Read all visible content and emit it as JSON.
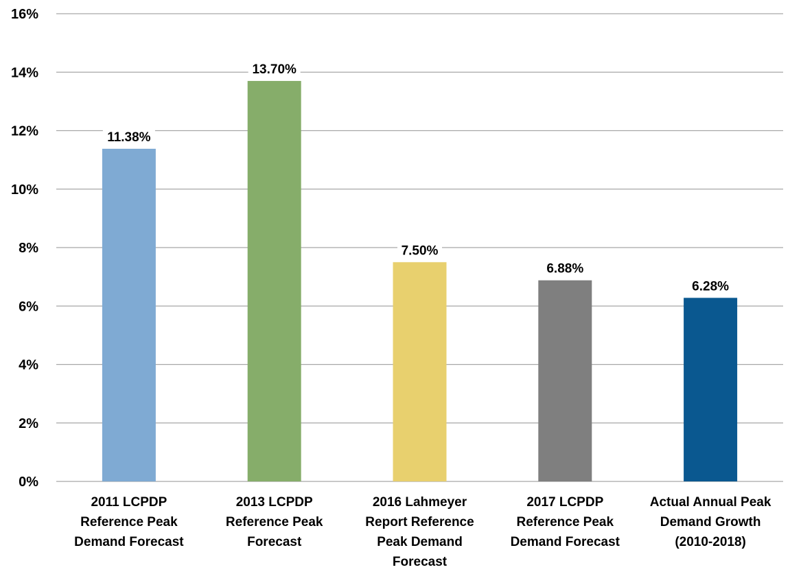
{
  "chart_data": {
    "type": "bar",
    "title": "",
    "xlabel": "",
    "ylabel": "",
    "ylim": [
      0,
      16
    ],
    "yticks": [
      "0%",
      "2%",
      "4%",
      "6%",
      "8%",
      "10%",
      "12%",
      "14%",
      "16%"
    ],
    "ytick_values": [
      0,
      2,
      4,
      6,
      8,
      10,
      12,
      14,
      16
    ],
    "grid": true,
    "legend": "none",
    "categories": [
      [
        "2011 LCPDP",
        "Reference Peak",
        "Demand Forecast"
      ],
      [
        "2013 LCPDP",
        "Reference Peak",
        "Forecast"
      ],
      [
        "2016 Lahmeyer",
        "Report Reference",
        "Peak Demand",
        "Forecast"
      ],
      [
        "2017 LCPDP",
        "Reference Peak",
        "Demand Forecast"
      ],
      [
        "Actual Annual Peak",
        "Demand Growth",
        "(2010-2018)"
      ]
    ],
    "values": [
      11.38,
      13.7,
      7.5,
      6.88,
      6.28
    ],
    "data_labels": [
      "11.38%",
      "13.70%",
      "7.50%",
      "6.88%",
      "6.28%"
    ],
    "colors": [
      "#7faad3",
      "#86ad6a",
      "#e8d06e",
      "#7f7f7f",
      "#0a5890"
    ],
    "gridline_color": "#a6a6a6"
  }
}
